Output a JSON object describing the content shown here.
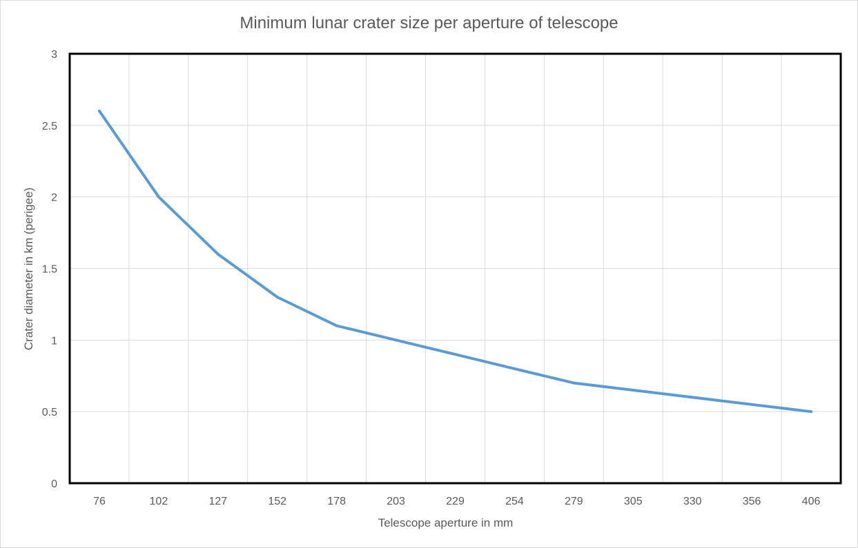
{
  "chart_data": {
    "type": "line",
    "title": "Minimum lunar crater size per aperture of telescope",
    "xlabel": "Telescope aperture in mm",
    "ylabel": "Crater diameter in km  (perigee)",
    "categories": [
      "76",
      "102",
      "127",
      "152",
      "178",
      "203",
      "229",
      "254",
      "279",
      "305",
      "330",
      "356",
      "406"
    ],
    "series": [
      {
        "values": [
          2.6,
          2.0,
          1.6,
          1.3,
          1.1,
          1.0,
          0.9,
          0.8,
          0.7,
          0.65,
          0.6,
          0.55,
          0.5
        ]
      }
    ],
    "ylim": [
      0,
      3
    ],
    "yticks": [
      0,
      0.5,
      1,
      1.5,
      2,
      2.5,
      3
    ],
    "ytick_labels": [
      "0",
      "0.5",
      "1",
      "1.5",
      "2",
      "2.5",
      "3"
    ],
    "grid": true,
    "legend": "none",
    "colors": {
      "line": "#5b9bd5",
      "plot_border": "#000000",
      "gridline": "#d9d9d9",
      "text": "#595959"
    }
  }
}
